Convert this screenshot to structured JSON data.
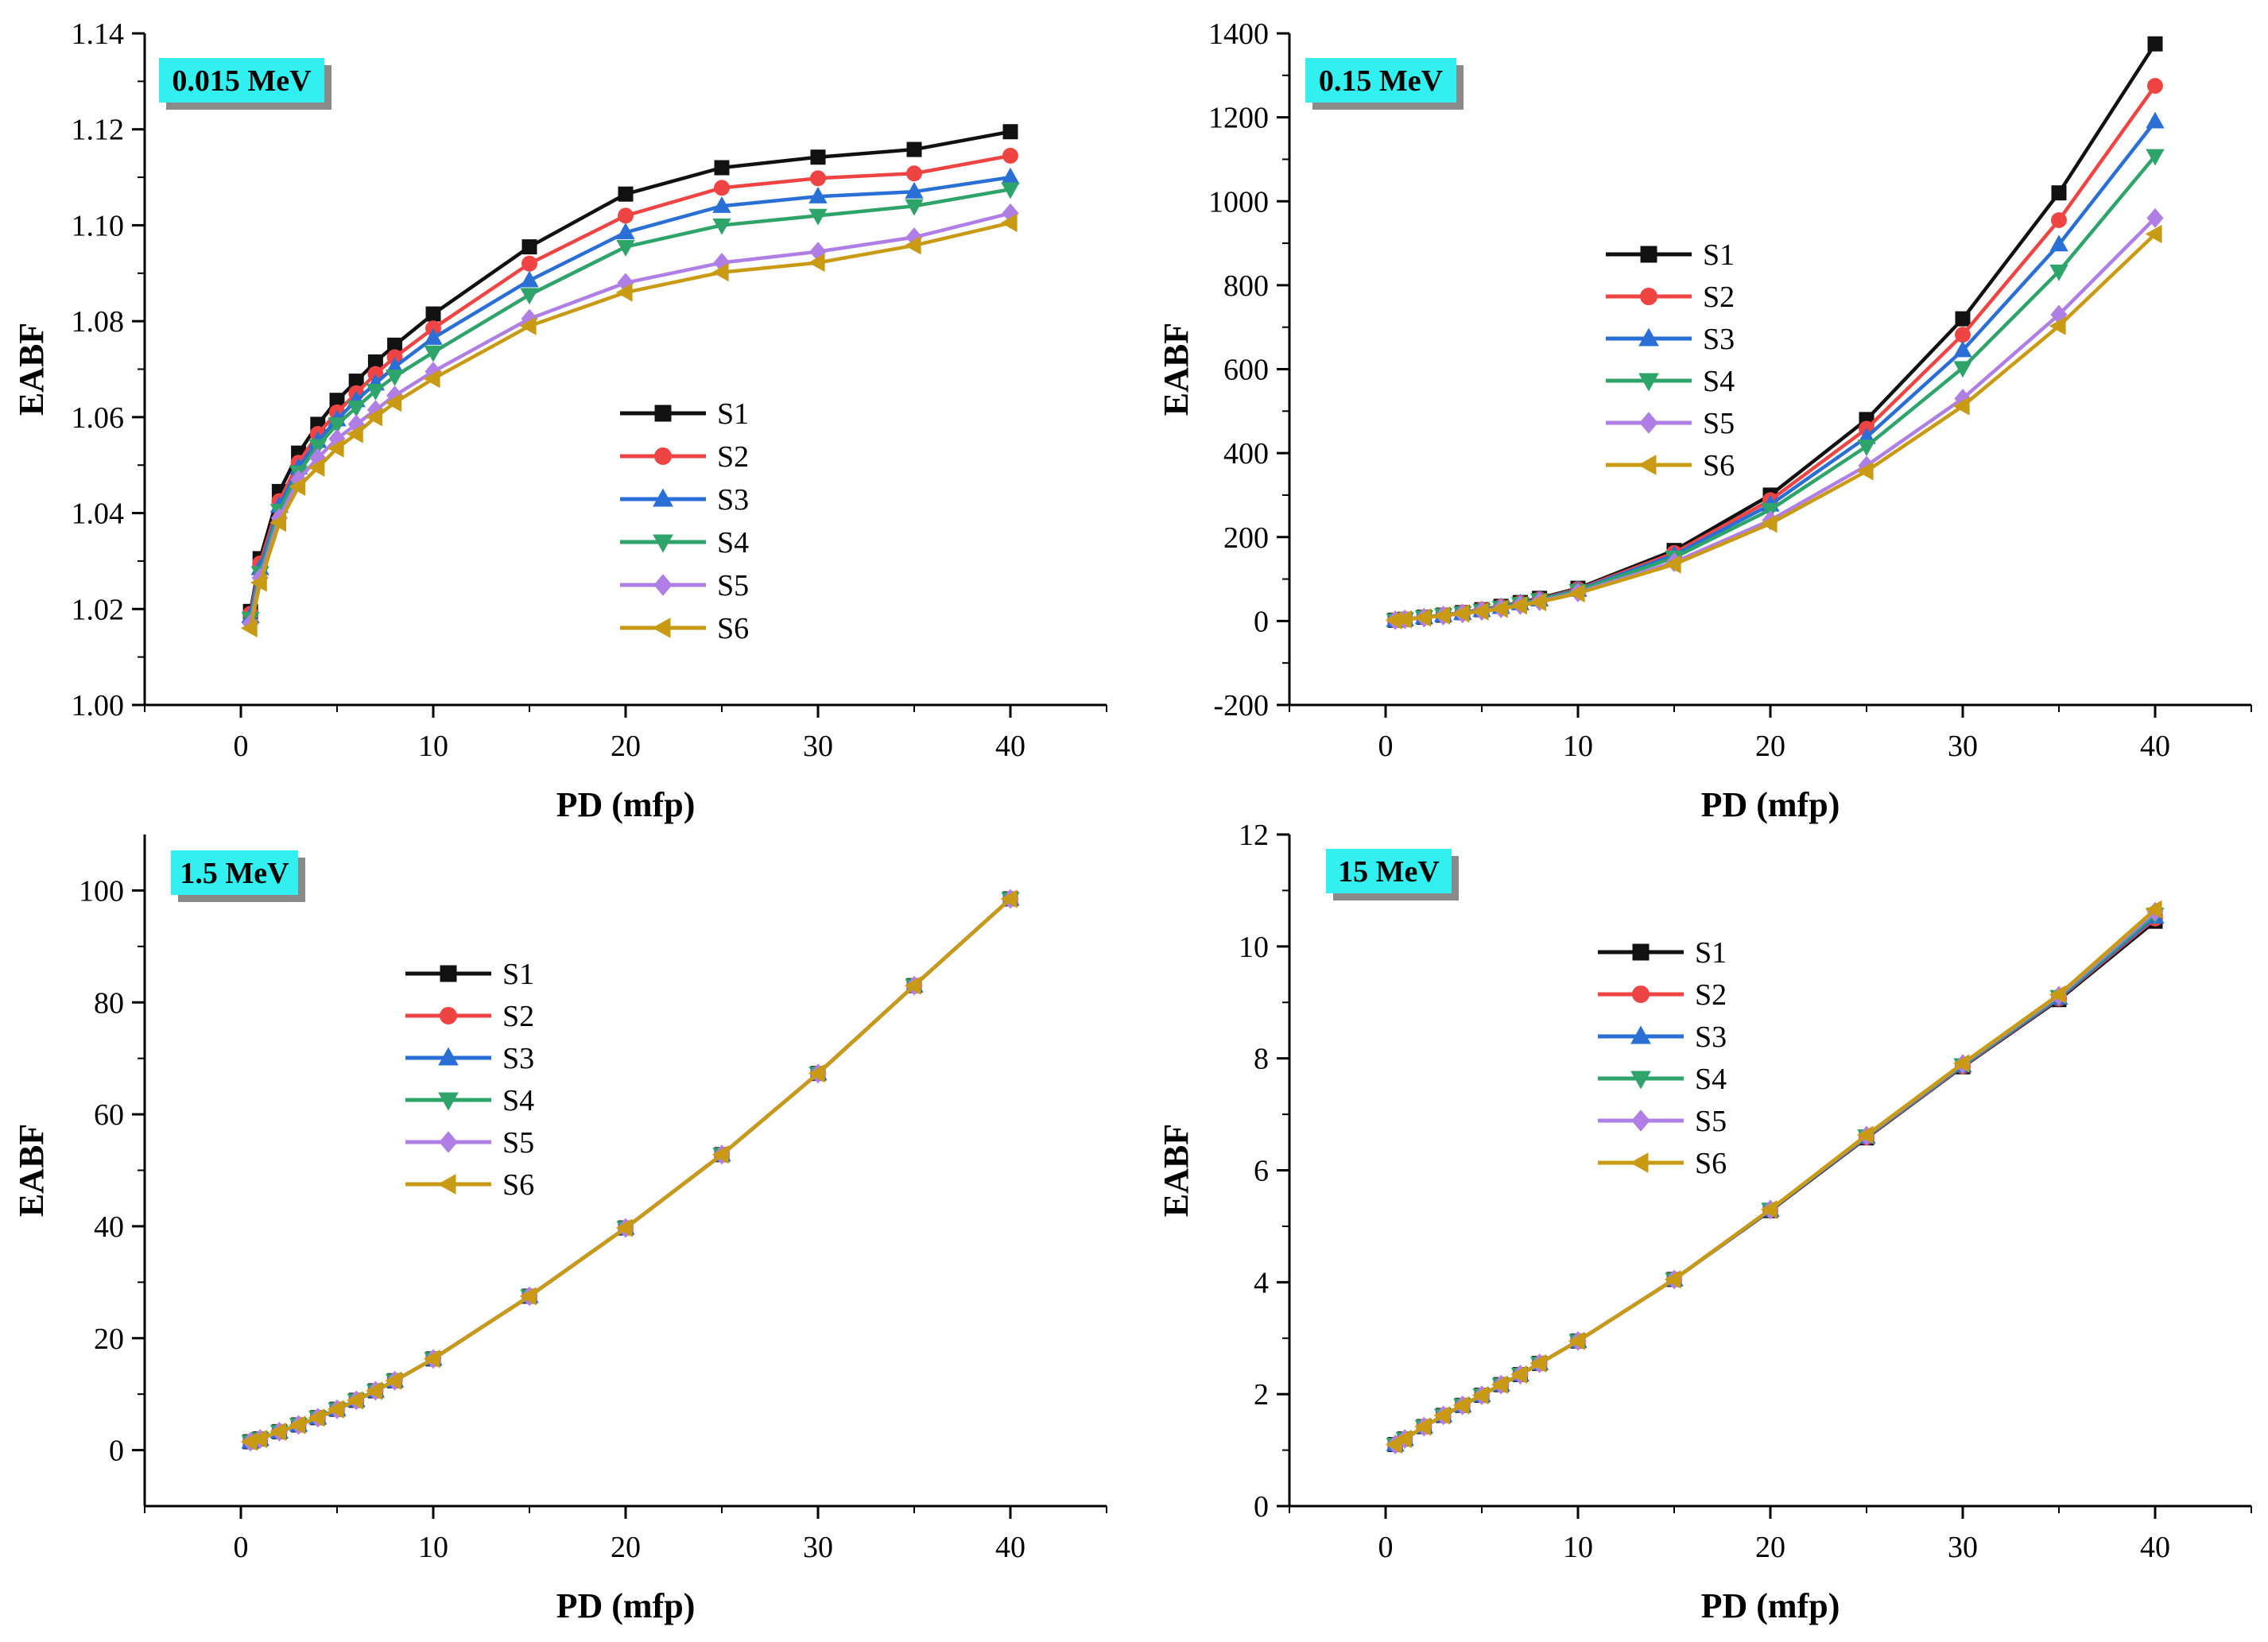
{
  "figure": {
    "series_names": [
      "S1",
      "S2",
      "S3",
      "S4",
      "S5",
      "S6"
    ],
    "series_colors": [
      "#111111",
      "#ee4444",
      "#2a6fd6",
      "#2ea36a",
      "#b07fe6",
      "#c99a14"
    ],
    "series_markers": [
      "square",
      "circle",
      "triangle-up",
      "triangle-down",
      "diamond",
      "triangle-left"
    ],
    "badge_color": "#33f0f0"
  },
  "chart_data": [
    {
      "type": "line",
      "badge": "0.015 MeV",
      "xlabel": "PD (mfp)",
      "ylabel": "EABF",
      "xlim": [
        -5,
        45
      ],
      "ylim": [
        1.0,
        1.14
      ],
      "xticks": [
        "0",
        "10",
        "20",
        "30",
        "40"
      ],
      "xtick_values": [
        0,
        10,
        20,
        30,
        40
      ],
      "yticks": [
        "1.00",
        "1.02",
        "1.04",
        "1.06",
        "1.08",
        "1.10",
        "1.12",
        "1.14"
      ],
      "ytick_values": [
        1.0,
        1.02,
        1.04,
        1.06,
        1.08,
        1.1,
        1.12,
        1.14
      ],
      "legend_position": "center",
      "x": [
        0.5,
        1,
        2,
        3,
        4,
        5,
        6,
        7,
        8,
        10,
        15,
        20,
        25,
        30,
        35,
        40
      ],
      "series": [
        {
          "name": "S1",
          "values": [
            1.0195,
            1.0305,
            1.0445,
            1.0525,
            1.0585,
            1.0635,
            1.0675,
            1.0715,
            1.075,
            1.0815,
            1.0955,
            1.1065,
            1.112,
            1.1142,
            1.1158,
            1.1195
          ]
        },
        {
          "name": "S2",
          "values": [
            1.019,
            1.0295,
            1.0425,
            1.0505,
            1.0565,
            1.061,
            1.065,
            1.069,
            1.0725,
            1.0785,
            1.092,
            1.102,
            1.1078,
            1.1098,
            1.1108,
            1.1145
          ]
        },
        {
          "name": "S3",
          "values": [
            1.0185,
            1.0285,
            1.0415,
            1.0495,
            1.055,
            1.0595,
            1.0635,
            1.067,
            1.0705,
            1.0765,
            1.0885,
            1.0985,
            1.104,
            1.106,
            1.107,
            1.11
          ]
        },
        {
          "name": "S4",
          "values": [
            1.018,
            1.0275,
            1.0405,
            1.0485,
            1.054,
            1.0585,
            1.062,
            1.0655,
            1.0685,
            1.0735,
            1.0855,
            1.0955,
            1.1,
            1.102,
            1.104,
            1.1075
          ]
        },
        {
          "name": "S5",
          "values": [
            1.017,
            1.0265,
            1.039,
            1.047,
            1.0515,
            1.0555,
            1.0585,
            1.0615,
            1.0645,
            1.0695,
            1.0805,
            1.088,
            1.0922,
            1.0945,
            1.0975,
            1.1025
          ]
        },
        {
          "name": "S6",
          "values": [
            1.016,
            1.0255,
            1.038,
            1.0455,
            1.0495,
            1.0535,
            1.0565,
            1.06,
            1.063,
            1.068,
            1.079,
            1.086,
            1.0902,
            1.0922,
            1.0958,
            1.1005
          ]
        }
      ]
    },
    {
      "type": "line",
      "badge": "0.15 MeV",
      "xlabel": "PD (mfp)",
      "ylabel": "EABF",
      "xlim": [
        -5,
        45
      ],
      "ylim": [
        -200,
        1400
      ],
      "xticks": [
        "0",
        "10",
        "20",
        "30",
        "40"
      ],
      "xtick_values": [
        0,
        10,
        20,
        30,
        40
      ],
      "yticks": [
        "-200",
        "0",
        "200",
        "400",
        "600",
        "800",
        "1000",
        "1200",
        "1400"
      ],
      "ytick_values": [
        -200,
        0,
        200,
        400,
        600,
        800,
        1000,
        1200,
        1400
      ],
      "legend_position": "upper-center",
      "x": [
        0.5,
        1,
        2,
        3,
        4,
        5,
        6,
        7,
        8,
        10,
        15,
        20,
        25,
        30,
        35,
        40
      ],
      "series": [
        {
          "name": "S1",
          "values": [
            2,
            4,
            9,
            14,
            20,
            27,
            35,
            44,
            54,
            78,
            168,
            300,
            480,
            720,
            1020,
            1375
          ]
        },
        {
          "name": "S2",
          "values": [
            2,
            4,
            9,
            14,
            20,
            27,
            34,
            43,
            52,
            76,
            162,
            288,
            458,
            682,
            955,
            1275
          ]
        },
        {
          "name": "S3",
          "values": [
            2,
            4,
            9,
            14,
            19,
            26,
            33,
            42,
            51,
            74,
            157,
            277,
            438,
            645,
            897,
            1190
          ]
        },
        {
          "name": "S4",
          "values": [
            2,
            4,
            9,
            14,
            19,
            25,
            32,
            41,
            50,
            72,
            151,
            265,
            416,
            603,
            833,
            1108
          ]
        },
        {
          "name": "S5",
          "values": [
            2,
            4,
            8,
            13,
            18,
            24,
            30,
            38,
            47,
            68,
            140,
            240,
            370,
            530,
            730,
            960
          ]
        },
        {
          "name": "S6",
          "values": [
            2,
            4,
            8,
            13,
            18,
            23,
            29,
            37,
            45,
            66,
            135,
            232,
            357,
            512,
            703,
            922
          ]
        }
      ]
    },
    {
      "type": "line",
      "badge": "1.5 MeV",
      "xlabel": "PD (mfp)",
      "ylabel": "EABF",
      "xlim": [
        -5,
        45
      ],
      "ylim": [
        -10,
        110
      ],
      "xticks": [
        "0",
        "10",
        "20",
        "30",
        "40"
      ],
      "xtick_values": [
        0,
        10,
        20,
        30,
        40
      ],
      "yticks": [
        "0",
        "20",
        "40",
        "60",
        "80",
        "100"
      ],
      "ytick_values": [
        0,
        20,
        40,
        60,
        80,
        100
      ],
      "legend_position": "upper-left",
      "x": [
        0.5,
        1,
        2,
        3,
        4,
        5,
        6,
        7,
        8,
        10,
        15,
        20,
        25,
        30,
        35,
        40
      ],
      "series": [
        {
          "name": "S1",
          "values": [
            1.5,
            2.0,
            3.3,
            4.5,
            5.8,
            7.3,
            8.9,
            10.6,
            12.4,
            16.3,
            27.5,
            39.7,
            52.8,
            67.3,
            83.0,
            98.5
          ]
        },
        {
          "name": "S2",
          "values": [
            1.5,
            2.0,
            3.3,
            4.5,
            5.8,
            7.3,
            8.9,
            10.6,
            12.4,
            16.3,
            27.5,
            39.7,
            52.8,
            67.3,
            83.0,
            98.5
          ]
        },
        {
          "name": "S3",
          "values": [
            1.5,
            2.0,
            3.3,
            4.5,
            5.8,
            7.3,
            8.9,
            10.6,
            12.4,
            16.3,
            27.5,
            39.7,
            52.8,
            67.3,
            83.0,
            98.5
          ]
        },
        {
          "name": "S4",
          "values": [
            1.5,
            2.0,
            3.3,
            4.5,
            5.8,
            7.3,
            8.9,
            10.6,
            12.4,
            16.3,
            27.5,
            39.7,
            52.8,
            67.3,
            83.0,
            98.5
          ]
        },
        {
          "name": "S5",
          "values": [
            1.5,
            2.0,
            3.3,
            4.5,
            5.8,
            7.3,
            8.9,
            10.6,
            12.4,
            16.3,
            27.5,
            39.7,
            52.8,
            67.3,
            83.0,
            98.5
          ]
        },
        {
          "name": "S6",
          "values": [
            1.5,
            2.0,
            3.3,
            4.5,
            5.8,
            7.3,
            8.9,
            10.6,
            12.4,
            16.3,
            27.5,
            39.7,
            52.8,
            67.3,
            83.0,
            98.5
          ]
        }
      ]
    },
    {
      "type": "line",
      "badge": "15 MeV",
      "xlabel": "PD (mfp)",
      "ylabel": "EABF",
      "xlim": [
        -5,
        45
      ],
      "ylim": [
        0,
        12
      ],
      "xticks": [
        "0",
        "10",
        "20",
        "30",
        "40"
      ],
      "xtick_values": [
        0,
        10,
        20,
        30,
        40
      ],
      "yticks": [
        "0",
        "2",
        "4",
        "6",
        "8",
        "10",
        "12"
      ],
      "ytick_values": [
        0,
        2,
        4,
        6,
        8,
        10,
        12
      ],
      "legend_position": "upper-center",
      "x": [
        0.5,
        1,
        2,
        3,
        4,
        5,
        6,
        7,
        8,
        10,
        15,
        20,
        25,
        30,
        35,
        40
      ],
      "series": [
        {
          "name": "S1",
          "values": [
            1.1,
            1.2,
            1.42,
            1.62,
            1.8,
            1.98,
            2.17,
            2.35,
            2.55,
            2.95,
            4.05,
            5.28,
            6.58,
            7.85,
            9.05,
            10.45
          ]
        },
        {
          "name": "S2",
          "values": [
            1.1,
            1.2,
            1.42,
            1.62,
            1.8,
            1.98,
            2.17,
            2.35,
            2.55,
            2.95,
            4.05,
            5.29,
            6.59,
            7.86,
            9.07,
            10.5
          ]
        },
        {
          "name": "S3",
          "values": [
            1.1,
            1.2,
            1.42,
            1.62,
            1.8,
            1.98,
            2.17,
            2.35,
            2.55,
            2.95,
            4.05,
            5.29,
            6.6,
            7.87,
            9.08,
            10.53
          ]
        },
        {
          "name": "S4",
          "values": [
            1.1,
            1.2,
            1.42,
            1.62,
            1.8,
            1.98,
            2.17,
            2.35,
            2.55,
            2.95,
            4.05,
            5.3,
            6.61,
            7.88,
            9.1,
            10.57
          ]
        },
        {
          "name": "S5",
          "values": [
            1.1,
            1.2,
            1.42,
            1.62,
            1.8,
            1.98,
            2.17,
            2.35,
            2.55,
            2.95,
            4.05,
            5.3,
            6.62,
            7.9,
            9.12,
            10.62
          ]
        },
        {
          "name": "S6",
          "values": [
            1.1,
            1.2,
            1.42,
            1.62,
            1.8,
            1.98,
            2.17,
            2.35,
            2.55,
            2.95,
            4.05,
            5.3,
            6.63,
            7.91,
            9.14,
            10.66
          ]
        }
      ]
    }
  ]
}
